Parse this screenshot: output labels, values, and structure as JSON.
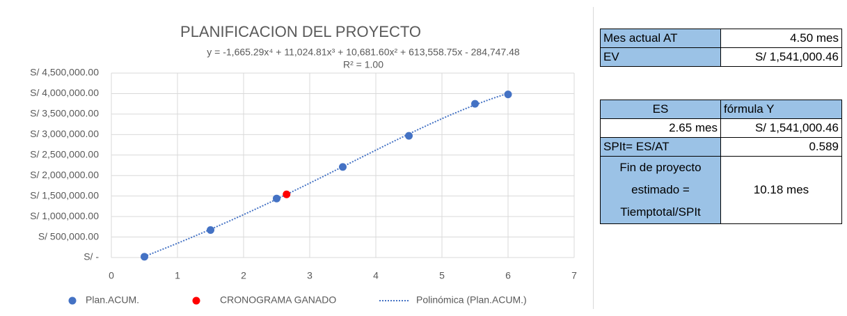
{
  "chart_data": {
    "type": "scatter",
    "title": "PLANIFICACION DEL PROYECTO",
    "equation": "y = -1,665.29x⁴ + 11,024.81x³ + 10,681.60x² + 613,558.75x - 284,747.48",
    "r_squared": "R² = 1.00",
    "series": [
      {
        "name": "Plan.ACUM.",
        "color": "#4472c4",
        "x": [
          0.5,
          1.5,
          2.5,
          3.5,
          4.5,
          5.5,
          6.0
        ],
        "values": [
          20000,
          670000,
          1440000,
          2210000,
          2970000,
          3750000,
          3980000
        ]
      },
      {
        "name": "CRONOGRAMA GANADO",
        "color": "#ff0000",
        "x": [
          2.65
        ],
        "values": [
          1541000.46
        ]
      }
    ],
    "trendline": {
      "name": "Polinómica (Plan.ACUM.)",
      "color": "#4472c4",
      "coefficients": [
        -1665.29,
        11024.81,
        10681.6,
        613558.75,
        -284747.48
      ]
    },
    "xlim": [
      0,
      7
    ],
    "xticks": [
      0,
      1,
      2,
      3,
      4,
      5,
      6,
      7
    ],
    "ylim": [
      0,
      4500000
    ],
    "yticks": [
      {
        "value": 0,
        "label": "S/ -"
      },
      {
        "value": 500000,
        "label": "S/ 500,000.00"
      },
      {
        "value": 1000000,
        "label": "S/ 1,000,000.00"
      },
      {
        "value": 1500000,
        "label": "S/ 1,500,000.00"
      },
      {
        "value": 2000000,
        "label": "S/ 2,000,000.00"
      },
      {
        "value": 2500000,
        "label": "S/ 2,500,000.00"
      },
      {
        "value": 3000000,
        "label": "S/ 3,000,000.00"
      },
      {
        "value": 3500000,
        "label": "S/ 3,500,000.00"
      },
      {
        "value": 4000000,
        "label": "S/ 4,000,000.00"
      },
      {
        "value": 4500000,
        "label": "S/ 4,500,000.00"
      }
    ],
    "grid": true,
    "legend": "bottom"
  },
  "tables": [
    {
      "rows": [
        [
          "Mes actual AT",
          "4.50 mes"
        ],
        [
          "EV",
          "S/ 1,541,000.46"
        ]
      ]
    },
    {
      "header": [
        "ES",
        "fórmula Y"
      ],
      "rows": [
        [
          "2.65 mes",
          "S/ 1,541,000.46"
        ],
        [
          "SPIt= ES/AT",
          "0.589"
        ],
        [
          "Fin de proyecto estimado = Tiemptotal/SPIt",
          "10.18 mes"
        ]
      ]
    }
  ]
}
